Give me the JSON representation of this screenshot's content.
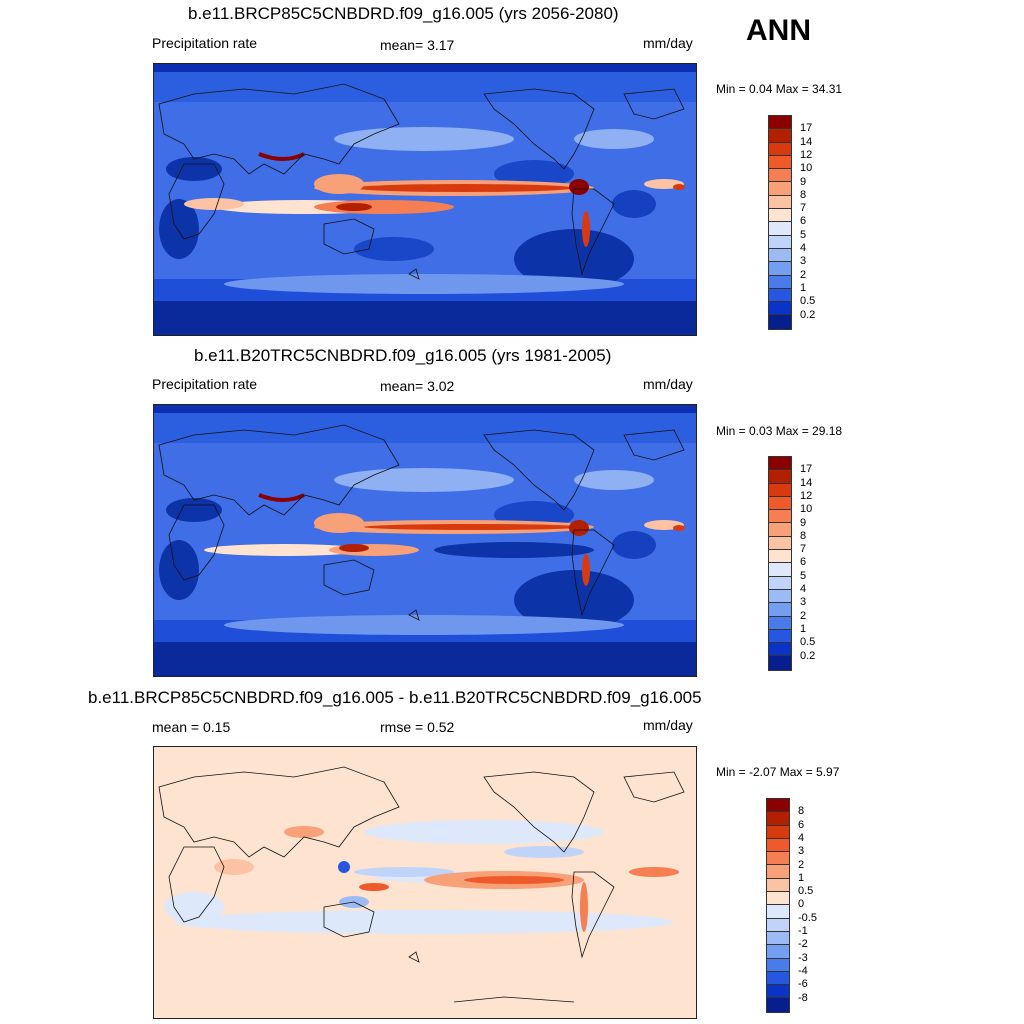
{
  "header": {
    "season": "ANN"
  },
  "panels": [
    {
      "title": "b.e11.BRCP85C5CNBDRD.f09_g16.005 (yrs 2056-2080)",
      "left_label": "Precipitation rate",
      "mid_label": "mean=   3.17",
      "units": "mm/day",
      "minmax": "Min =   0.04 Max =  34.31"
    },
    {
      "title": "b.e11.B20TRC5CNBDRD.f09_g16.005 (yrs 1981-2005)",
      "left_label": "Precipitation rate",
      "mid_label": "mean=   3.02",
      "units": "mm/day",
      "minmax": "Min =   0.03 Max =  29.18"
    },
    {
      "title": "b.e11.BRCP85C5CNBDRD.f09_g16.005 - b.e11.B20TRC5CNBDRD.f09_g16.005",
      "left_label": "mean =   0.15",
      "mid_label": "rmse =   0.52",
      "units": "mm/day",
      "minmax": "Min =  -2.07 Max =   5.97"
    }
  ],
  "colorbars": {
    "precip": {
      "labels": [
        "17",
        "14",
        "12",
        "10",
        "9",
        "8",
        "7",
        "6",
        "5",
        "4",
        "3",
        "2",
        "1",
        "0.5",
        "0.2"
      ],
      "colors": [
        "#8b0000",
        "#b22000",
        "#d83a10",
        "#ee5a2a",
        "#f57e52",
        "#f8a077",
        "#fbc3a3",
        "#fde3d0",
        "#dde9fb",
        "#bfd4f8",
        "#9cbaf4",
        "#749ef0",
        "#4a7bea",
        "#2557e0",
        "#0a34c8",
        "#061e8e"
      ]
    },
    "diff": {
      "labels": [
        "8",
        "6",
        "4",
        "3",
        "2",
        "1",
        "0.5",
        "0",
        "-0.5",
        "-1",
        "-2",
        "-3",
        "-4",
        "-6",
        "-8"
      ],
      "colors": [
        "#8b0000",
        "#b22000",
        "#d83a10",
        "#ee5a2a",
        "#f57e52",
        "#f8a077",
        "#fbc3a3",
        "#fde3d0",
        "#dde9fb",
        "#bfd4f8",
        "#9cbaf4",
        "#749ef0",
        "#4a7bea",
        "#2557e0",
        "#0a34c8",
        "#061e8e"
      ]
    }
  }
}
